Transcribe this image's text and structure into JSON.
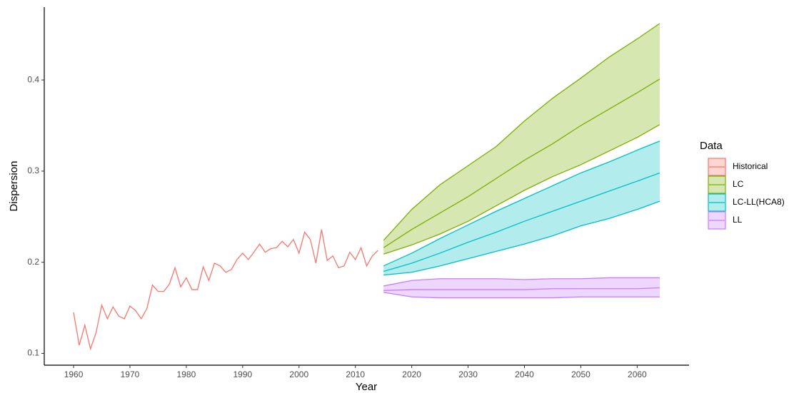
{
  "chart_data": {
    "type": "line",
    "x_label": "Year",
    "y_label": "Dispersion",
    "legend_title": "Data",
    "xlim": [
      1954.8,
      2069.2
    ],
    "ylim": [
      0.0871,
      0.4799
    ],
    "xticks": [
      1960,
      1970,
      1980,
      1990,
      2000,
      2010,
      2020,
      2030,
      2040,
      2050,
      2060
    ],
    "yticks": [
      0.1,
      0.2,
      0.3,
      0.4
    ],
    "grid": false,
    "legend_position": "right",
    "series": [
      {
        "name": "Historical",
        "color": "#F8766D",
        "x": [
          1960,
          1961,
          1962,
          1963,
          1964,
          1965,
          1966,
          1967,
          1968,
          1969,
          1970,
          1971,
          1972,
          1973,
          1974,
          1975,
          1976,
          1977,
          1978,
          1979,
          1980,
          1981,
          1982,
          1983,
          1984,
          1985,
          1986,
          1987,
          1988,
          1989,
          1990,
          1991,
          1992,
          1993,
          1994,
          1995,
          1996,
          1997,
          1998,
          1999,
          2000,
          2001,
          2002,
          2003,
          2004,
          2005,
          2006,
          2007,
          2008,
          2009,
          2010,
          2011,
          2012,
          2013,
          2014
        ],
        "values": [
          0.145,
          0.109,
          0.131,
          0.105,
          0.123,
          0.153,
          0.138,
          0.151,
          0.141,
          0.138,
          0.152,
          0.147,
          0.138,
          0.149,
          0.175,
          0.168,
          0.168,
          0.176,
          0.194,
          0.173,
          0.183,
          0.17,
          0.17,
          0.195,
          0.18,
          0.199,
          0.196,
          0.189,
          0.192,
          0.203,
          0.21,
          0.203,
          0.211,
          0.22,
          0.211,
          0.215,
          0.216,
          0.223,
          0.217,
          0.225,
          0.21,
          0.233,
          0.225,
          0.199,
          0.236,
          0.202,
          0.207,
          0.194,
          0.196,
          0.211,
          0.203,
          0.216,
          0.196,
          0.207,
          0.213
        ]
      },
      {
        "name": "LC",
        "color": "#7CAE00",
        "x": [
          2015,
          2020,
          2025,
          2030,
          2035,
          2040,
          2045,
          2050,
          2055,
          2060,
          2064
        ],
        "values": [
          0.216,
          0.236,
          0.254,
          0.272,
          0.292,
          0.312,
          0.33,
          0.35,
          0.368,
          0.386,
          0.401
        ],
        "lower": [
          0.209,
          0.219,
          0.231,
          0.245,
          0.262,
          0.279,
          0.294,
          0.307,
          0.322,
          0.337,
          0.351
        ],
        "upper": [
          0.224,
          0.258,
          0.285,
          0.306,
          0.327,
          0.355,
          0.38,
          0.402,
          0.425,
          0.445,
          0.462
        ]
      },
      {
        "name": "LC-LL(HCA8)",
        "color": "#00BFC4",
        "x": [
          2015,
          2020,
          2025,
          2030,
          2035,
          2040,
          2045,
          2050,
          2055,
          2060,
          2064
        ],
        "values": [
          0.19,
          0.199,
          0.21,
          0.222,
          0.233,
          0.245,
          0.256,
          0.267,
          0.278,
          0.289,
          0.298
        ],
        "lower": [
          0.186,
          0.189,
          0.196,
          0.204,
          0.212,
          0.22,
          0.229,
          0.24,
          0.248,
          0.258,
          0.267
        ],
        "upper": [
          0.196,
          0.21,
          0.226,
          0.241,
          0.256,
          0.27,
          0.284,
          0.298,
          0.31,
          0.323,
          0.333
        ]
      },
      {
        "name": "LL",
        "color": "#C77CFF",
        "x": [
          2015,
          2020,
          2025,
          2030,
          2035,
          2040,
          2045,
          2050,
          2055,
          2060,
          2064
        ],
        "values": [
          0.169,
          0.17,
          0.17,
          0.17,
          0.17,
          0.17,
          0.171,
          0.171,
          0.171,
          0.171,
          0.172
        ],
        "lower": [
          0.167,
          0.162,
          0.161,
          0.161,
          0.161,
          0.161,
          0.161,
          0.162,
          0.162,
          0.162,
          0.162
        ],
        "upper": [
          0.174,
          0.18,
          0.182,
          0.182,
          0.182,
          0.181,
          0.182,
          0.182,
          0.183,
          0.183,
          0.183
        ]
      }
    ]
  }
}
